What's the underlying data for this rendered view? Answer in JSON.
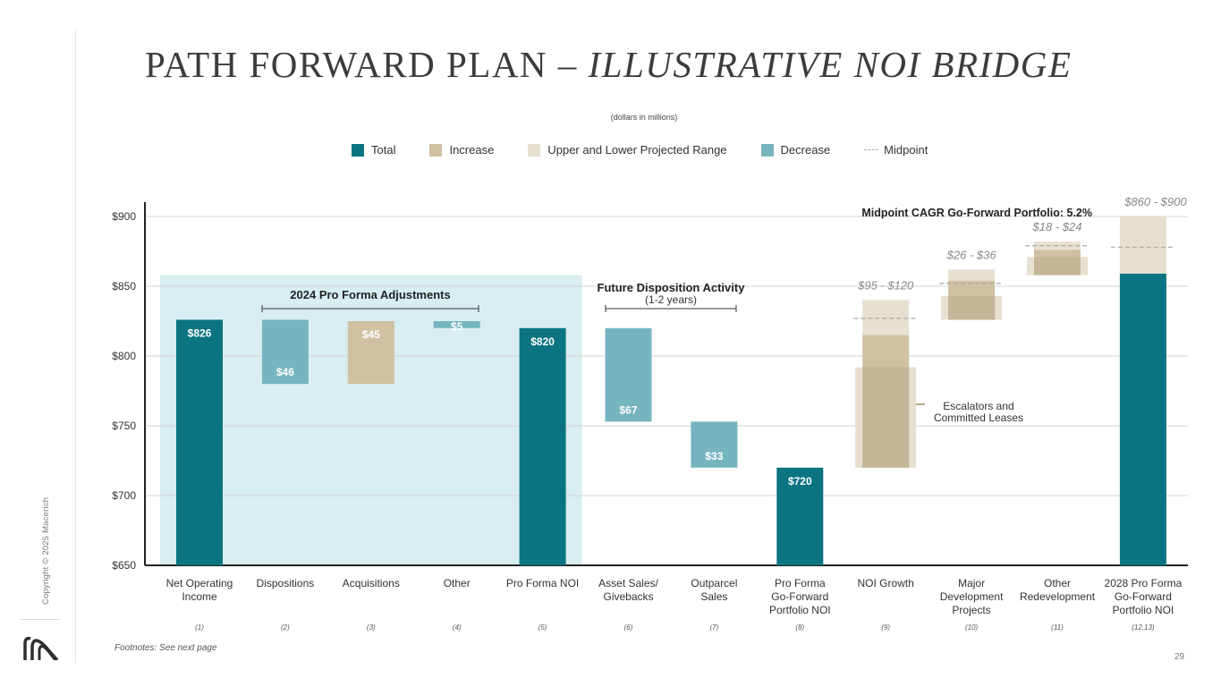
{
  "title_main": "PATH FORWARD PLAN – ",
  "title_italic": "ILLUSTRATIVE NOI BRIDGE",
  "subtitle": "(dollars in millions)",
  "copyright": "Copyright © 2025 Macerich",
  "footnote": "Footnotes: See next page",
  "page_number": "29",
  "colors": {
    "total": "#0b7480",
    "increase": "#cfc1a2",
    "range": "#e7e0d1",
    "decrease": "#76b5bf",
    "shade": "#d8eef1"
  },
  "legend": [
    {
      "label": "Total",
      "type": "total"
    },
    {
      "label": "Increase",
      "type": "increase"
    },
    {
      "label": "Upper and Lower Projected Range",
      "type": "range"
    },
    {
      "label": "Decrease",
      "type": "decrease"
    },
    {
      "label": "Midpoint",
      "type": "midpoint"
    }
  ],
  "chart_data": {
    "type": "waterfall",
    "ylim": [
      650,
      900
    ],
    "yticks": [
      "$900",
      "$850",
      "$800",
      "$750",
      "$700",
      "$650"
    ],
    "ytick_values": [
      900,
      850,
      800,
      750,
      700,
      650
    ],
    "categories": [
      {
        "label": [
          "Net Operating",
          "Income"
        ],
        "note": "(1)"
      },
      {
        "label": [
          "Dispositions"
        ],
        "note": "(2)"
      },
      {
        "label": [
          "Acquisitions"
        ],
        "note": "(3)"
      },
      {
        "label": [
          "Other"
        ],
        "note": "(4)"
      },
      {
        "label": [
          "Pro Forma NOI"
        ],
        "note": "(5)"
      },
      {
        "label": [
          "Asset Sales/",
          "Givebacks"
        ],
        "note": "(6)"
      },
      {
        "label": [
          "Outparcel",
          "Sales"
        ],
        "note": "(7)"
      },
      {
        "label": [
          "Pro Forma",
          "Go-Forward",
          "Portfolio NOI"
        ],
        "note": "(8)"
      },
      {
        "label": [
          "NOI Growth"
        ],
        "note": "(9)"
      },
      {
        "label": [
          "Major",
          "Development",
          "Projects"
        ],
        "note": "(10)"
      },
      {
        "label": [
          "Other",
          "Redevelopment"
        ],
        "note": "(11)"
      },
      {
        "label": [
          "2028 Pro Forma",
          "Go-Forward",
          "Portfolio NOI"
        ],
        "note": "(12,13)"
      }
    ],
    "bars": [
      {
        "cat": 0,
        "type": "total",
        "from": 650,
        "to": 826,
        "label": "$826"
      },
      {
        "cat": 1,
        "type": "decrease",
        "from": 780,
        "to": 826,
        "label": "$46"
      },
      {
        "cat": 2,
        "type": "increase",
        "from": 780,
        "to": 825,
        "label": "$45"
      },
      {
        "cat": 3,
        "type": "decrease",
        "from": 820,
        "to": 825,
        "label": "$5"
      },
      {
        "cat": 4,
        "type": "total",
        "from": 650,
        "to": 820,
        "label": "$820"
      },
      {
        "cat": 5,
        "type": "decrease",
        "from": 753,
        "to": 820,
        "label": "$67"
      },
      {
        "cat": 6,
        "type": "decrease",
        "from": 720,
        "to": 753,
        "label": "$33"
      },
      {
        "cat": 7,
        "type": "total",
        "from": 650,
        "to": 720,
        "label": "$720"
      },
      {
        "cat": 11,
        "type": "total",
        "from": 650,
        "to": 859,
        "label": ""
      }
    ],
    "ranges": [
      {
        "cat": 8,
        "low": 815,
        "high": 840,
        "base": 720,
        "midpoint": 827,
        "label": "$95 - $120",
        "committed": 792
      },
      {
        "cat": 9,
        "low": 843,
        "high": 862,
        "base": 826,
        "midpoint": 852,
        "label": "$26 - $36"
      },
      {
        "cat": 10,
        "low": 876,
        "high": 882,
        "base": 858,
        "midpoint": 879,
        "label": "$18 - $24"
      },
      {
        "cat": 11,
        "low": 859,
        "high": 900,
        "base": 859,
        "midpoint": 878,
        "label": "$860 - $900"
      }
    ],
    "annotations": {
      "pro_forma_adjustments": "2024 Pro Forma Adjustments",
      "future_dispositions": "Future Disposition Activity",
      "future_dispositions_sub": "(1-2 years)",
      "cagr": "Midpoint CAGR Go-Forward Portfolio: 5.2%",
      "escalators": [
        "Escalators and",
        "Committed Leases"
      ]
    }
  }
}
